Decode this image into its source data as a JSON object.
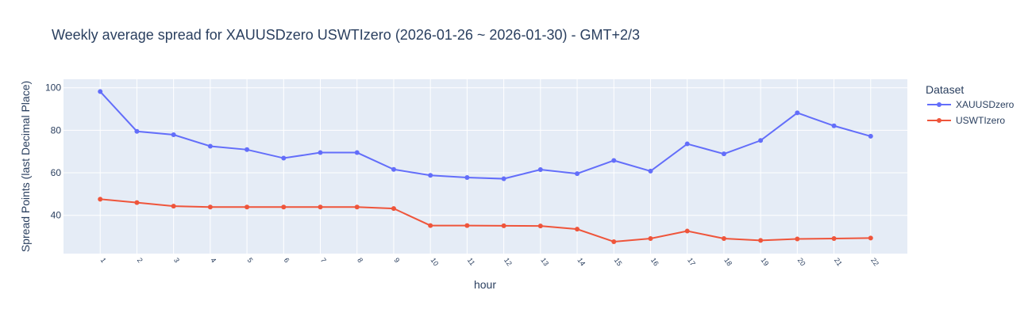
{
  "chart_data": {
    "type": "line",
    "title": "Weekly average spread for  XAUUSDzero USWTIzero (2026-01-26 ~ 2026-01-30) - GMT+2/3",
    "xlabel": "hour",
    "ylabel": "Spread Points (last Decimal Place)",
    "x": [
      1,
      2,
      3,
      4,
      5,
      6,
      7,
      8,
      9,
      10,
      11,
      12,
      13,
      14,
      15,
      16,
      17,
      18,
      19,
      20,
      21,
      22
    ],
    "xlim": [
      0,
      23
    ],
    "ylim": [
      22,
      104
    ],
    "yticks": [
      40,
      60,
      80,
      100
    ],
    "grid": true,
    "legend_title": "Dataset",
    "legend_position": "right",
    "plot_bg": "#e5ecf6",
    "series": [
      {
        "name": "XAUUSDzero",
        "color": "#636efa",
        "values": [
          98.2,
          79.5,
          77.9,
          72.5,
          70.9,
          66.9,
          69.5,
          69.5,
          61.6,
          58.8,
          57.8,
          57.2,
          61.5,
          59.6,
          65.8,
          60.8,
          73.6,
          68.9,
          75.2,
          88.2,
          82.1,
          77.2
        ]
      },
      {
        "name": "USWTIzero",
        "color": "#ef553b",
        "values": [
          47.6,
          46.0,
          44.3,
          43.9,
          43.9,
          43.9,
          43.9,
          43.9,
          43.2,
          35.2,
          35.2,
          35.1,
          35.0,
          33.5,
          27.6,
          29.1,
          32.6,
          29.1,
          28.2,
          28.9,
          29.1,
          29.3
        ]
      }
    ]
  }
}
